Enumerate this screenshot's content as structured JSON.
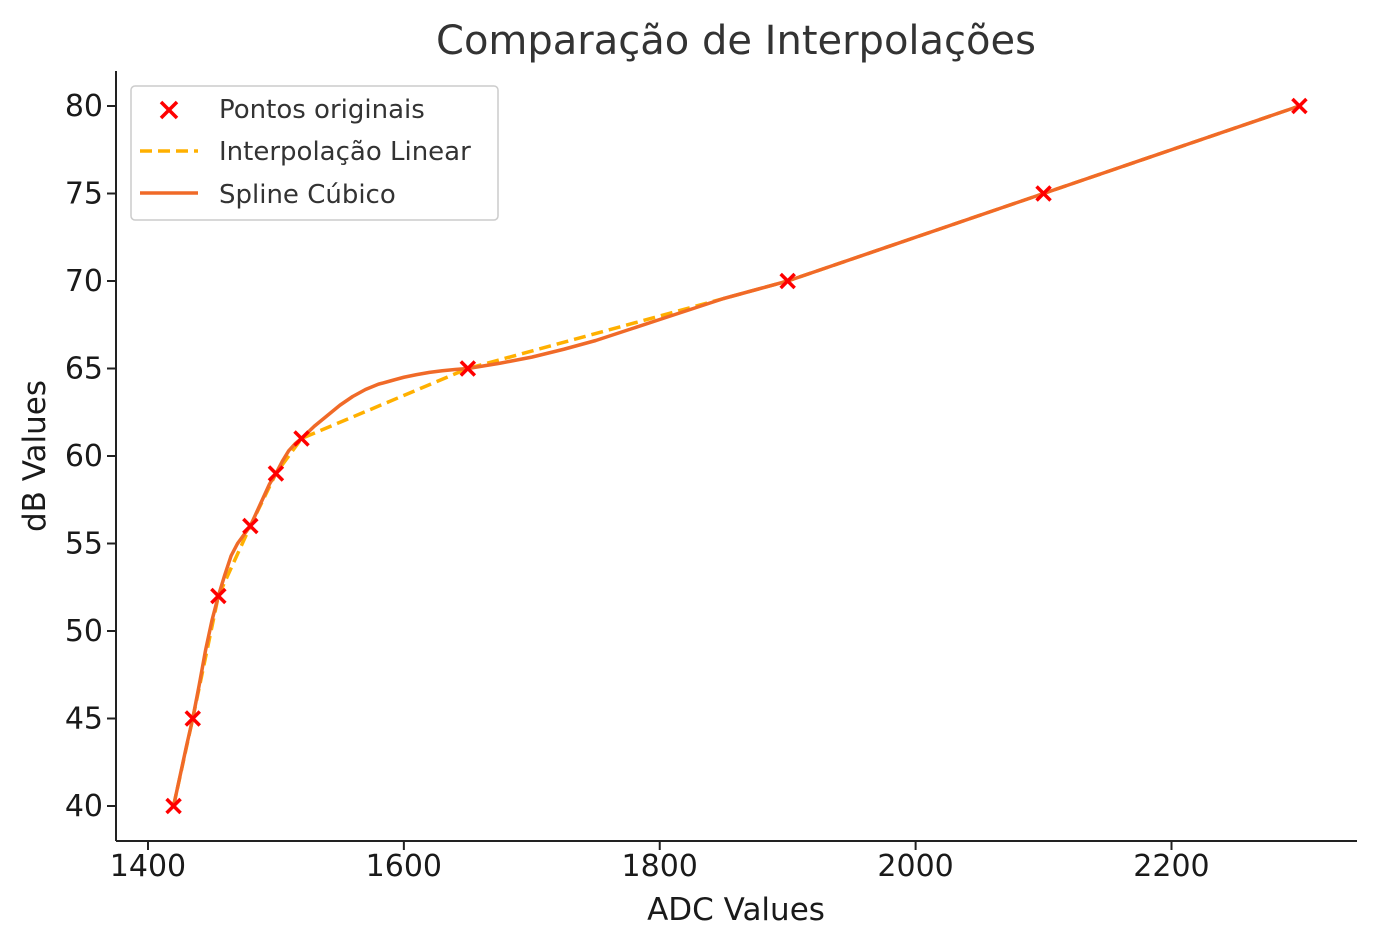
{
  "chart_data": {
    "type": "line",
    "title": "Comparação de Interpolações",
    "xlabel": "ADC Values",
    "ylabel": "dB Values",
    "xlim": [
      1375,
      2345
    ],
    "ylim": [
      38,
      82
    ],
    "xticks": [
      1400,
      1600,
      1800,
      2000,
      2200
    ],
    "yticks": [
      40,
      45,
      50,
      55,
      60,
      65,
      70,
      75,
      80
    ],
    "grid": false,
    "legend_position": "top-left",
    "series": [
      {
        "name": "Pontos originais",
        "kind": "scatter",
        "marker": "x",
        "color": "#ff0000",
        "x": [
          1420,
          1435,
          1455,
          1480,
          1500,
          1520,
          1650,
          1900,
          2100,
          2300
        ],
        "y": [
          40,
          45,
          52,
          56,
          59,
          61,
          65,
          70,
          75,
          80
        ]
      },
      {
        "name": "Interpolação Linear",
        "kind": "line",
        "style": "dashed",
        "color": "#ffb000",
        "x": [
          1420,
          1435,
          1455,
          1480,
          1500,
          1520,
          1650,
          1900,
          2100,
          2300
        ],
        "y": [
          40,
          45,
          52,
          56,
          59,
          61,
          65,
          70,
          75,
          80
        ]
      },
      {
        "name": "Spline Cúbico",
        "kind": "line",
        "style": "solid",
        "color": "#f06a28",
        "x": [
          1420,
          1425,
          1430,
          1435,
          1440,
          1445,
          1450,
          1455,
          1460,
          1465,
          1470,
          1475,
          1480,
          1485,
          1490,
          1495,
          1500,
          1505,
          1510,
          1515,
          1520,
          1530,
          1540,
          1550,
          1560,
          1570,
          1580,
          1590,
          1600,
          1610,
          1620,
          1630,
          1640,
          1650,
          1675,
          1700,
          1725,
          1750,
          1775,
          1800,
          1825,
          1850,
          1875,
          1900,
          1950,
          2000,
          2050,
          2100,
          2150,
          2200,
          2250,
          2300
        ],
        "y": [
          40,
          41.7,
          43.4,
          45,
          46.9,
          48.9,
          50.6,
          52,
          53.2,
          54.3,
          55.0,
          55.5,
          56,
          56.8,
          57.6,
          58.4,
          59,
          59.7,
          60.3,
          60.7,
          61,
          61.7,
          62.3,
          62.9,
          63.4,
          63.8,
          64.1,
          64.3,
          64.5,
          64.65,
          64.78,
          64.87,
          64.94,
          65,
          65.3,
          65.65,
          66.1,
          66.6,
          67.2,
          67.8,
          68.4,
          69.0,
          69.5,
          70,
          71.25,
          72.5,
          73.75,
          75,
          76.25,
          77.5,
          78.75,
          80
        ]
      }
    ]
  }
}
